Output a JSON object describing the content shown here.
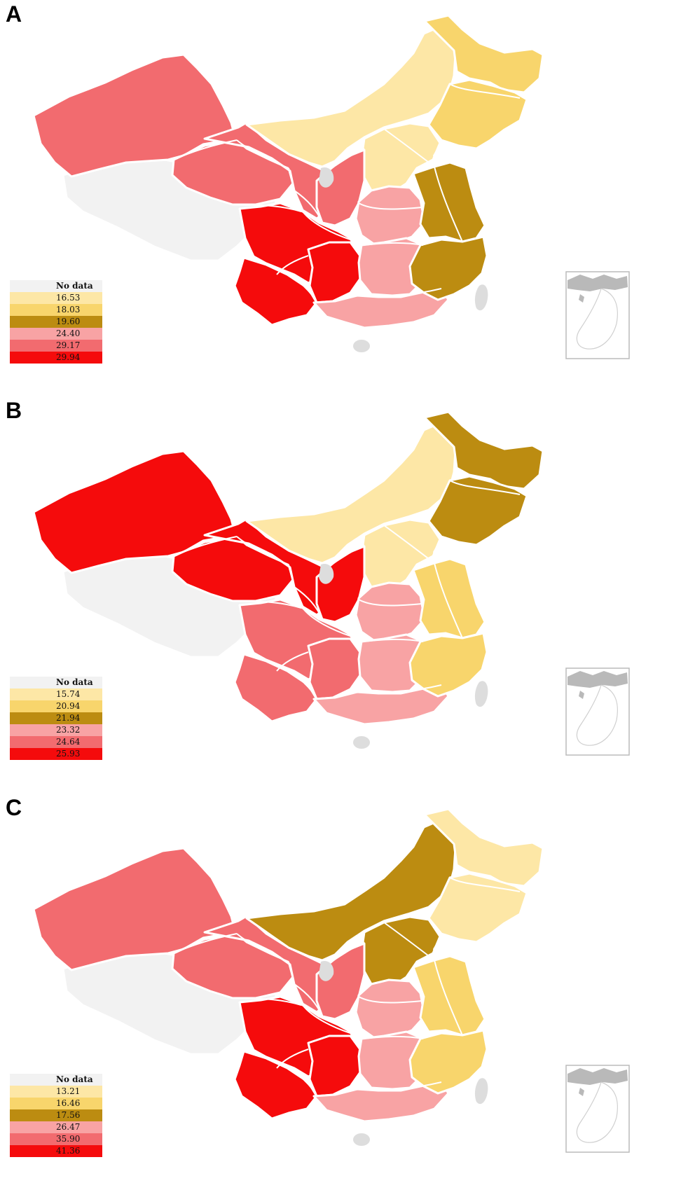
{
  "colors": {
    "none": "#f2f2f2",
    "c1": "#fde7a6",
    "c2": "#f8d56c",
    "c3": "#bc8c11",
    "c4": "#f8a3a4",
    "c5": "#f26b6f",
    "c6": "#f50b0c",
    "island": "#dddddd",
    "inset_land": "#b9b9b9"
  },
  "panels": [
    {
      "letter": "A",
      "legend": [
        "No data",
        "16.53",
        "18.03",
        "19.60",
        "24.40",
        "29.17",
        "29.94"
      ],
      "regions": {
        "xinjiang": "c5",
        "tibet": "none",
        "qinghai": "c5",
        "gansu": "c5",
        "inner_mongolia": "c1",
        "heilongjiang": "c2",
        "jilin_liaoning": "c2",
        "north_china": "c1",
        "shaanxi": "c5",
        "sichuan": "c6",
        "yunnan": "c6",
        "guizhou_chongqing": "c6",
        "central": "c4",
        "hunan_jiangxi": "c4",
        "guangdong_guangxi": "c4",
        "east_coast": "c3",
        "fujian_zhejiang": "c3"
      }
    },
    {
      "letter": "B",
      "legend": [
        "No data",
        "15.74",
        "20.94",
        "21.94",
        "23.32",
        "24.64",
        "25.93"
      ],
      "regions": {
        "xinjiang": "c6",
        "tibet": "none",
        "qinghai": "c6",
        "gansu": "c6",
        "inner_mongolia": "c1",
        "heilongjiang": "c3",
        "jilin_liaoning": "c3",
        "north_china": "c1",
        "shaanxi": "c6",
        "sichuan": "c5",
        "yunnan": "c5",
        "guizhou_chongqing": "c5",
        "central": "c4",
        "hunan_jiangxi": "c4",
        "guangdong_guangxi": "c4",
        "east_coast": "c2",
        "fujian_zhejiang": "c2"
      }
    },
    {
      "letter": "C",
      "legend": [
        "No data",
        "13.21",
        "16.46",
        "17.56",
        "26.47",
        "35.90",
        "41.36"
      ],
      "regions": {
        "xinjiang": "c5",
        "tibet": "none",
        "qinghai": "c5",
        "gansu": "c5",
        "inner_mongolia": "c3",
        "heilongjiang": "c1",
        "jilin_liaoning": "c1",
        "north_china": "c3",
        "shaanxi": "c5",
        "sichuan": "c6",
        "yunnan": "c6",
        "guizhou_chongqing": "c6",
        "central": "c4",
        "hunan_jiangxi": "c4",
        "guangdong_guangxi": "c4",
        "east_coast": "c2",
        "fujian_zhejiang": "c2"
      }
    }
  ]
}
